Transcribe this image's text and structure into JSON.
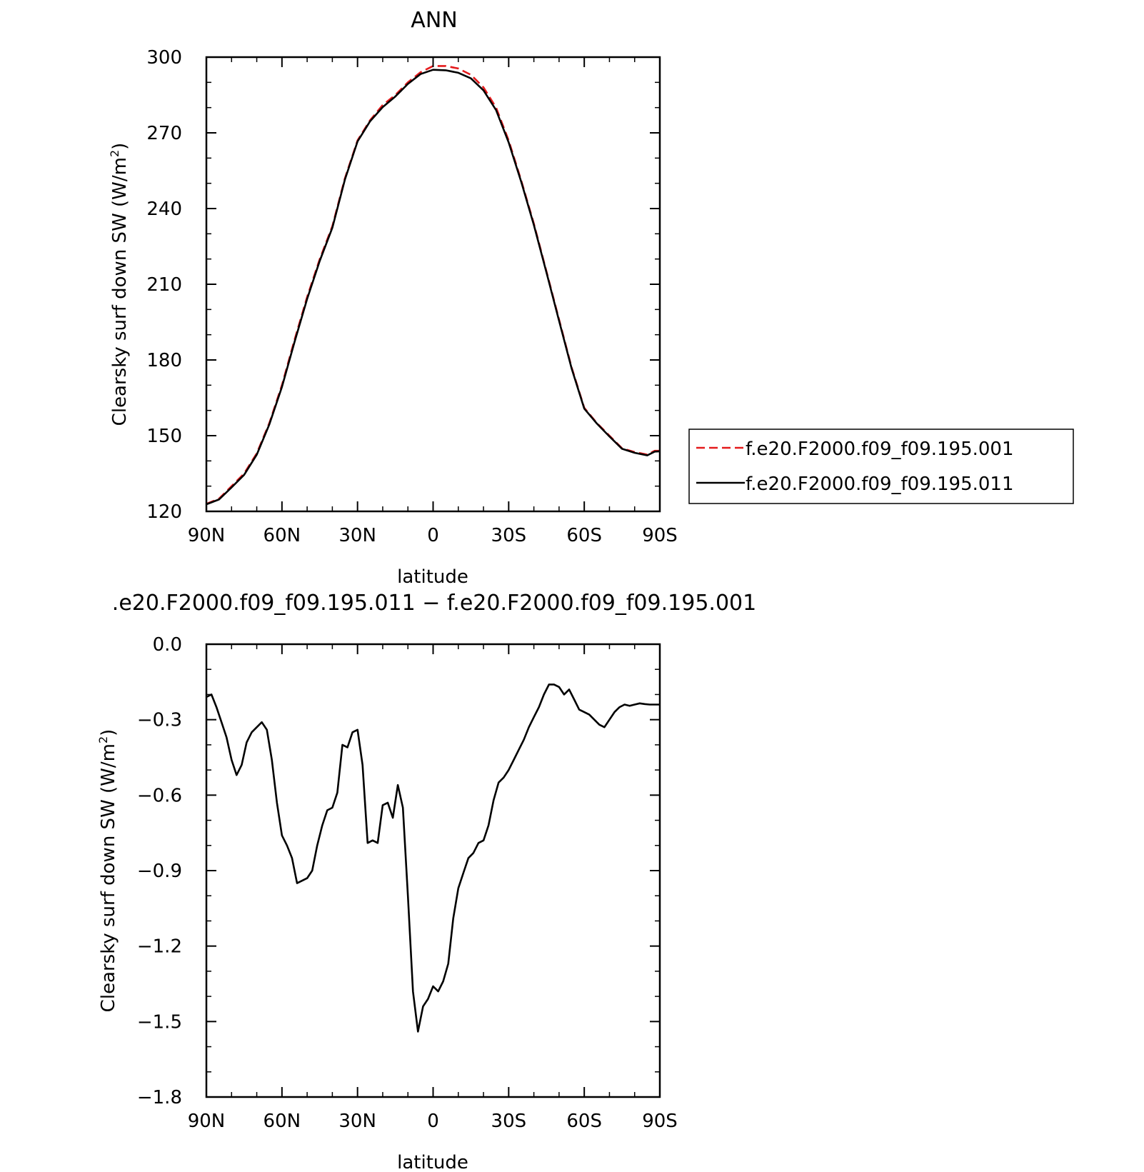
{
  "chart_data": [
    {
      "type": "line",
      "title": "ANN",
      "xlabel": "latitude",
      "ylabel": "Clearsky surf down SW (W/m²)",
      "ylabel_main": "Clearsky surf down SW (W/m",
      "ylabel_sup": "2",
      "ylabel_close": ")",
      "xlim": [
        90,
        -90
      ],
      "ylim": [
        120,
        300
      ],
      "x_ticks": [
        90,
        60,
        30,
        0,
        -30,
        -60,
        -90
      ],
      "x_tick_labels": [
        "90N",
        "60N",
        "30N",
        "0",
        "30S",
        "60S",
        "90S"
      ],
      "y_ticks": [
        120,
        150,
        180,
        210,
        240,
        270,
        300
      ],
      "y_tick_labels": [
        "120",
        "150",
        "180",
        "210",
        "240",
        "270",
        "300"
      ],
      "legend_position": "right",
      "grid": false,
      "series": [
        {
          "name": "f.e20.F2000.f09_f09.195.001",
          "color": "#e41a1c",
          "style": "dashed",
          "x": [
            90,
            85,
            80,
            75,
            70,
            65,
            60,
            55,
            50,
            45,
            40,
            35,
            30,
            25,
            20,
            15,
            10,
            5,
            0,
            -5,
            -10,
            -15,
            -20,
            -25,
            -30,
            -35,
            -40,
            -45,
            -50,
            -55,
            -60,
            -65,
            -70,
            -75,
            -80,
            -85,
            -88,
            -90
          ],
          "y": [
            123,
            125,
            130,
            135,
            143,
            155,
            170,
            188,
            205,
            220,
            233,
            252,
            267,
            275,
            281,
            285,
            290,
            294,
            296.5,
            296.5,
            295.5,
            293,
            288,
            280,
            267,
            251,
            234,
            215,
            196,
            177,
            161,
            155,
            150,
            145,
            143.5,
            142.5,
            144,
            144
          ],
          "x_count": 38
        },
        {
          "name": "f.e20.F2000.f09_f09.195.011",
          "color": "#000000",
          "style": "solid",
          "x": [
            90,
            85,
            80,
            75,
            70,
            65,
            60,
            55,
            50,
            45,
            40,
            35,
            30,
            25,
            20,
            15,
            10,
            5,
            0,
            -5,
            -10,
            -15,
            -20,
            -25,
            -30,
            -35,
            -40,
            -45,
            -50,
            -55,
            -60,
            -65,
            -70,
            -75,
            -80,
            -85,
            -88,
            -90
          ],
          "y": [
            122.8,
            124.7,
            129.5,
            134.5,
            142.5,
            154.5,
            169.3,
            187.2,
            204.2,
            219.3,
            232.4,
            251.5,
            266.6,
            274.6,
            280.2,
            284.4,
            289.4,
            293.3,
            295,
            294.8,
            293.8,
            291.6,
            286.8,
            279,
            266.2,
            250.5,
            233.5,
            214.6,
            195.5,
            176.6,
            160.7,
            154.8,
            149.7,
            144.8,
            143.2,
            142.2,
            143.7,
            143.8
          ]
        }
      ]
    },
    {
      "type": "line",
      "title": ".e20.F2000.f09_f09.195.011 − f.e20.F2000.f09_f09.195.001",
      "xlabel": "latitude",
      "ylabel": "Clearsky surf down SW (W/m²)",
      "ylabel_main": "Clearsky surf down SW (W/m",
      "ylabel_sup": "2",
      "ylabel_close": ")",
      "xlim": [
        90,
        -90
      ],
      "ylim": [
        -1.8,
        0.0
      ],
      "x_ticks": [
        90,
        60,
        30,
        0,
        -30,
        -60,
        -90
      ],
      "x_tick_labels": [
        "90N",
        "60N",
        "30N",
        "0",
        "30S",
        "60S",
        "90S"
      ],
      "y_ticks": [
        0.0,
        -0.3,
        -0.6,
        -0.9,
        -1.2,
        -1.5,
        -1.8
      ],
      "y_tick_labels": [
        "0.0",
        "−0.3",
        "−0.6",
        "−0.9",
        "−1.2",
        "−1.5",
        "−1.8"
      ],
      "grid": false,
      "series": [
        {
          "color": "#000000",
          "style": "solid",
          "x": [
            90,
            88,
            86,
            84,
            82,
            80,
            78,
            76,
            74,
            72,
            70,
            68,
            66,
            64,
            62,
            60,
            58,
            56,
            54,
            52,
            50,
            48,
            46,
            44,
            42,
            40,
            38,
            36,
            34,
            32,
            30,
            28,
            26,
            24,
            22,
            20,
            18,
            16,
            14,
            12,
            10,
            8,
            6,
            4,
            2,
            0,
            -2,
            -4,
            -6,
            -8,
            -10,
            -12,
            -14,
            -16,
            -18,
            -20,
            -22,
            -24,
            -26,
            -28,
            -30,
            -32,
            -34,
            -36,
            -38,
            -40,
            -42,
            -44,
            -46,
            -48,
            -50,
            -52,
            -54,
            -56,
            -58,
            -60,
            -62,
            -64,
            -66,
            -68,
            -70,
            -72,
            -74,
            -76,
            -78,
            -80,
            -82,
            -84,
            -86,
            -88,
            -90
          ],
          "y": [
            -0.21,
            -0.2,
            -0.25,
            -0.31,
            -0.37,
            -0.46,
            -0.52,
            -0.48,
            -0.39,
            -0.35,
            -0.33,
            -0.31,
            -0.34,
            -0.46,
            -0.63,
            -0.76,
            -0.8,
            -0.85,
            -0.95,
            -0.94,
            -0.93,
            -0.9,
            -0.8,
            -0.72,
            -0.66,
            -0.65,
            -0.59,
            -0.4,
            -0.41,
            -0.35,
            -0.34,
            -0.48,
            -0.79,
            -0.78,
            -0.79,
            -0.64,
            -0.63,
            -0.69,
            -0.56,
            -0.65,
            -1.0,
            -1.38,
            -1.54,
            -1.44,
            -1.41,
            -1.36,
            -1.38,
            -1.34,
            -1.27,
            -1.09,
            -0.97,
            -0.91,
            -0.85,
            -0.83,
            -0.79,
            -0.78,
            -0.72,
            -0.62,
            -0.55,
            -0.53,
            -0.5,
            -0.46,
            -0.42,
            -0.38,
            -0.33,
            -0.29,
            -0.25,
            -0.2,
            -0.16,
            -0.16,
            -0.17,
            -0.2,
            -0.18,
            -0.22,
            -0.26,
            -0.27,
            -0.28,
            -0.3,
            -0.32,
            -0.33,
            -0.3,
            -0.27,
            -0.25,
            -0.24,
            -0.245,
            -0.24,
            -0.235,
            -0.238,
            -0.24,
            -0.24,
            -0.24
          ]
        }
      ]
    }
  ]
}
